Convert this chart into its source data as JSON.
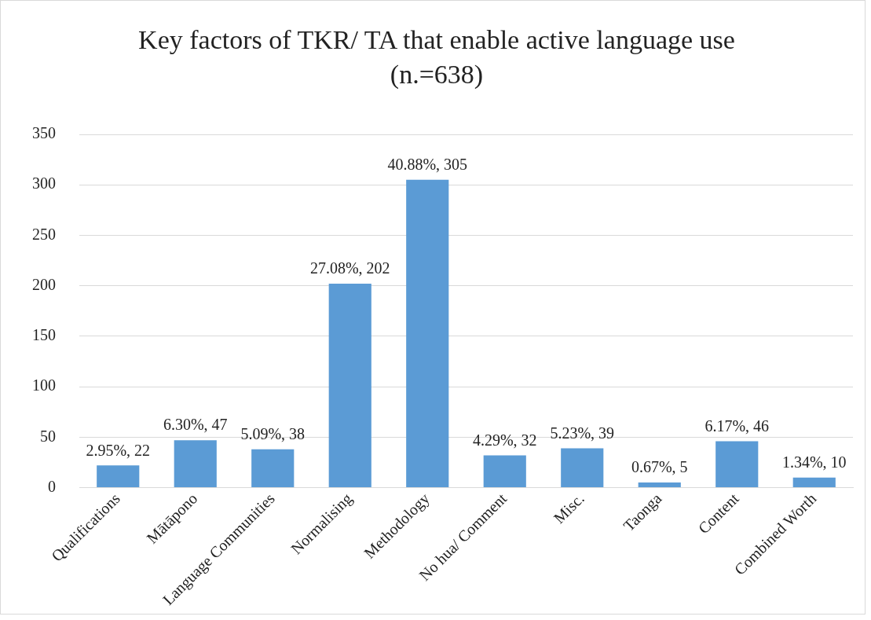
{
  "chart_data": {
    "type": "bar",
    "title": "Key factors of TKR/ TA that enable active language use (n.=638)",
    "categories": [
      "Qualifications",
      "Mātāpono",
      "Language Communities",
      "Normalising",
      "Methodology",
      "No hua/ Comment",
      "Misc.",
      "Taonga",
      "Content",
      "Combined Worth"
    ],
    "values": [
      22,
      47,
      38,
      202,
      305,
      32,
      39,
      5,
      46,
      10
    ],
    "value_labels": [
      "2.95%, 22",
      "6.30%, 47",
      "5.09%, 38",
      "27.08%, 202",
      "40.88%, 305",
      "4.29%, 32",
      "5.23%, 39",
      "0.67%, 5",
      "6.17%, 46",
      "1.34%, 10"
    ],
    "color": "#5b9bd5",
    "ylim": [
      0,
      350
    ],
    "yticks": [
      0,
      50,
      100,
      150,
      200,
      250,
      300,
      350
    ],
    "grid": "y",
    "legend": false
  }
}
